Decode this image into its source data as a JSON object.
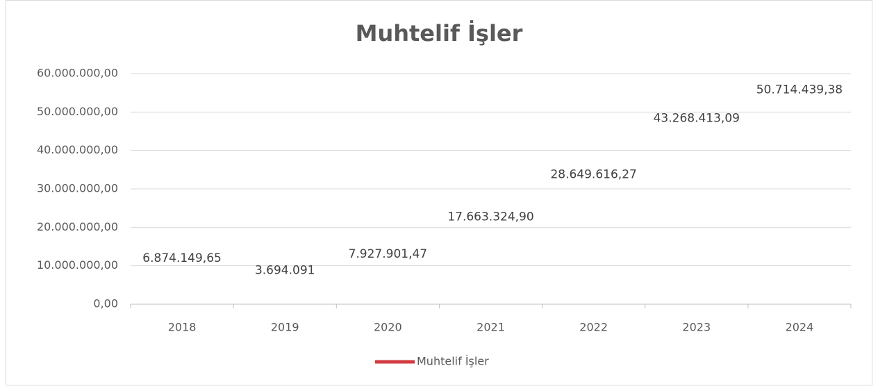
{
  "chart_data": {
    "type": "line",
    "title": "Muhtelif İşler",
    "categories": [
      "2018",
      "2019",
      "2020",
      "2021",
      "2022",
      "2023",
      "2024"
    ],
    "series": [
      {
        "name": "Muhtelif İşler",
        "color": "#d13b40",
        "values": [
          6874149.65,
          3694091,
          7927901.47,
          17663324.9,
          28649616.27,
          43268413.09,
          50714439.38
        ],
        "value_labels": [
          "6.874.149,65",
          "3.694.091",
          "7.927.901,47",
          "17.663.324,90",
          "28.649.616,27",
          "43.268.413,09",
          "50.714.439,38"
        ]
      }
    ],
    "ylim": [
      0,
      60000000
    ],
    "yticks": [
      {
        "value": 0,
        "label": "0,00"
      },
      {
        "value": 10000000,
        "label": "10.000.000,00"
      },
      {
        "value": 20000000,
        "label": "20.000.000,00"
      },
      {
        "value": 30000000,
        "label": "30.000.000,00"
      },
      {
        "value": 40000000,
        "label": "40.000.000,00"
      },
      {
        "value": 50000000,
        "label": "50.000.000,00"
      },
      {
        "value": 60000000,
        "label": "60.000.000,00"
      }
    ],
    "grid": true,
    "legend": "bottom"
  }
}
